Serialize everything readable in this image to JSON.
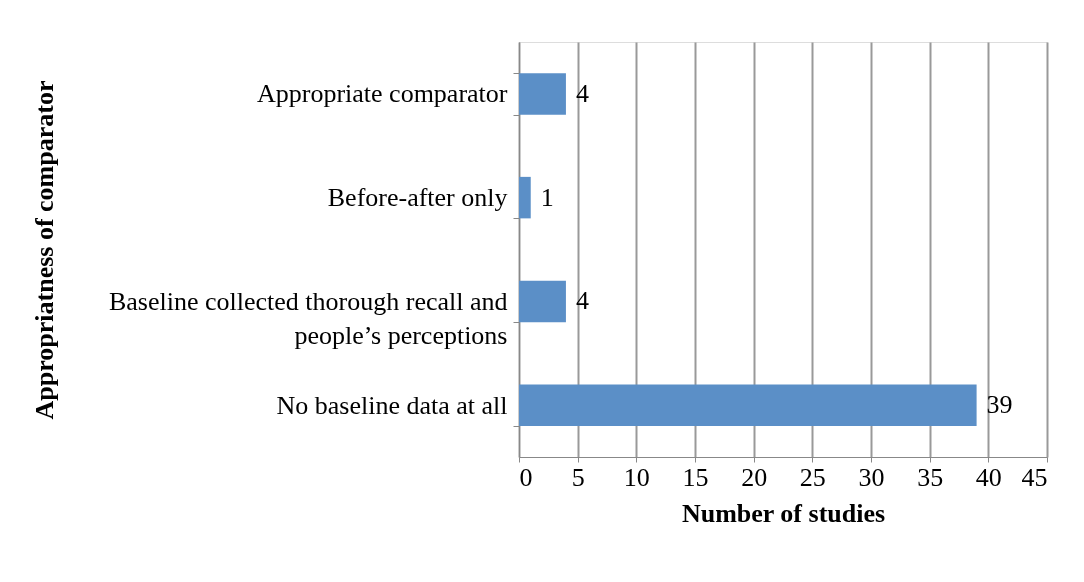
{
  "chart_data": {
    "type": "bar",
    "orientation": "horizontal",
    "xlabel": "Number of studies",
    "ylabel": "Appropriatness of comparator",
    "categories": [
      "Appropriate comparator",
      "Before-after only",
      "Baseline collected thorough recall and\npeople’s perceptions",
      "No baseline data at all"
    ],
    "values": [
      4,
      1,
      4,
      39
    ],
    "color": "#5b8fc7",
    "xlim": [
      0,
      45
    ],
    "xticks": [
      0,
      5,
      10,
      15,
      20,
      25,
      30,
      35,
      40,
      45
    ],
    "grid": "x",
    "data_labels": true
  }
}
